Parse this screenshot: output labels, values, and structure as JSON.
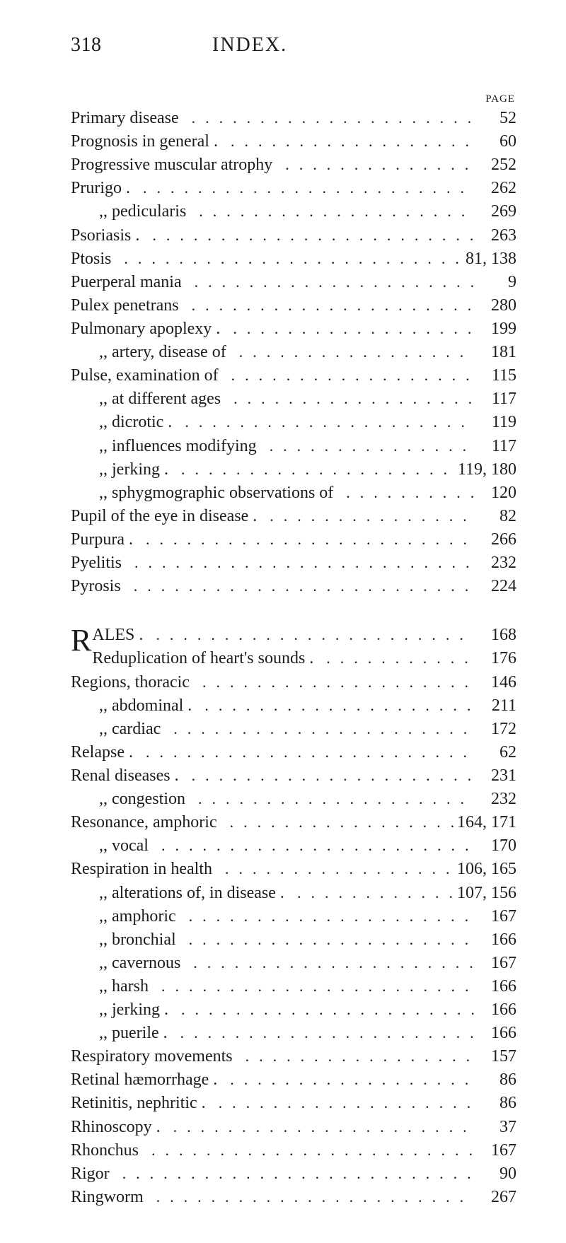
{
  "header": {
    "page_number": "318",
    "title": "INDEX."
  },
  "page_label": "PAGE",
  "dots": ".................................",
  "block1": [
    {
      "text": "Primary disease",
      "page": "52",
      "indent": 0
    },
    {
      "text": "Prognosis in general .",
      "page": "60",
      "indent": 0
    },
    {
      "text": "Progressive muscular atrophy",
      "page": "252",
      "indent": 0
    },
    {
      "text": "Prurigo .",
      "page": "262",
      "indent": 0
    },
    {
      "text": ",,     pedicularis",
      "page": "269",
      "indent": 1
    },
    {
      "text": "Psoriasis .",
      "page": "263",
      "indent": 0
    },
    {
      "text": "Ptosis",
      "page": "81, 138",
      "indent": 0
    },
    {
      "text": "Puerperal mania",
      "page": "9",
      "indent": 0
    },
    {
      "text": "Pulex penetrans",
      "page": "280",
      "indent": 0
    },
    {
      "text": "Pulmonary apoplexy .",
      "page": "199",
      "indent": 0
    },
    {
      "text": ",,        artery, disease of",
      "page": "181",
      "indent": 1
    },
    {
      "text": "Pulse, examination of",
      "page": "115",
      "indent": 0
    },
    {
      "text": ",,   at different ages",
      "page": "117",
      "indent": 1
    },
    {
      "text": ",,   dicrotic .",
      "page": "119",
      "indent": 1
    },
    {
      "text": ",,   influences modifying",
      "page": "117",
      "indent": 1
    },
    {
      "text": ",,   jerking .",
      "page": "119, 180",
      "indent": 1
    },
    {
      "text": ",,   sphygmographic observations of",
      "page": "120",
      "indent": 1
    },
    {
      "text": "Pupil of the eye in disease .",
      "page": "82",
      "indent": 0
    },
    {
      "text": "Purpura  .",
      "page": "266",
      "indent": 0
    },
    {
      "text": "Pyelitis",
      "page": "232",
      "indent": 0
    },
    {
      "text": "Pyrosis",
      "page": "224",
      "indent": 0
    }
  ],
  "block2_dropcap": "R",
  "block2_first": {
    "text": "ALES .",
    "page": "168"
  },
  "block2_second": {
    "text": "Reduplication of heart's sounds .",
    "page": "176"
  },
  "block2": [
    {
      "text": "Regions, thoracic",
      "page": "146",
      "indent": 0
    },
    {
      "text": ",,      abdominal  .",
      "page": "211",
      "indent": 1
    },
    {
      "text": ",,      cardiac",
      "page": "172",
      "indent": 1
    },
    {
      "text": "Relapse .",
      "page": "62",
      "indent": 0
    },
    {
      "text": "Renal diseases .",
      "page": "231",
      "indent": 0
    },
    {
      "text": ",,   congestion",
      "page": "232",
      "indent": 1
    },
    {
      "text": "Resonance, amphoric",
      "page": "164, 171",
      "indent": 0
    },
    {
      "text": ",,         vocal",
      "page": "170",
      "indent": 1
    },
    {
      "text": "Respiration in health",
      "page": "106, 165",
      "indent": 0
    },
    {
      "text": ",,        alterations of, in disease .",
      "page": "107, 156",
      "indent": 1
    },
    {
      "text": ",,        amphoric",
      "page": "167",
      "indent": 1
    },
    {
      "text": ",,        bronchial",
      "page": "166",
      "indent": 1
    },
    {
      "text": ",,        cavernous",
      "page": "167",
      "indent": 1
    },
    {
      "text": ",,        harsh",
      "page": "166",
      "indent": 1
    },
    {
      "text": ",,        jerking  .",
      "page": "166",
      "indent": 1
    },
    {
      "text": ",,        puerile  .",
      "page": "166",
      "indent": 1
    },
    {
      "text": "Respiratory movements",
      "page": "157",
      "indent": 0
    },
    {
      "text": "Retinal hæmorrhage .",
      "page": "86",
      "indent": 0
    },
    {
      "text": "Retinitis, nephritic  .",
      "page": "86",
      "indent": 0
    },
    {
      "text": "Rhinoscopy   .",
      "page": "37",
      "indent": 0
    },
    {
      "text": "Rhonchus",
      "page": "167",
      "indent": 0
    },
    {
      "text": "Rigor",
      "page": "90",
      "indent": 0
    },
    {
      "text": "Ringworm",
      "page": "267",
      "indent": 0
    }
  ]
}
